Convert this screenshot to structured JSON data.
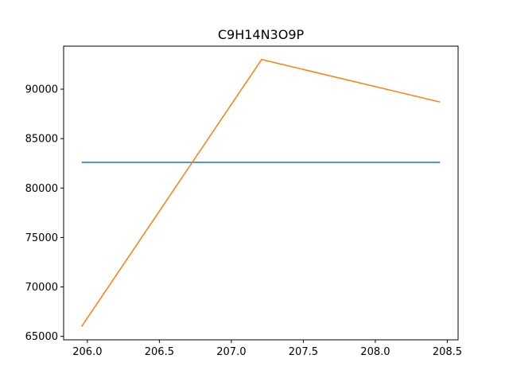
{
  "chart_data": {
    "type": "line",
    "title": "C9H14N3O9P",
    "xlabel": "",
    "ylabel": "",
    "xlim": [
      205.835,
      208.575
    ],
    "ylim": [
      64650,
      94350
    ],
    "x_ticks": [
      206.0,
      206.5,
      207.0,
      207.5,
      208.0,
      208.5
    ],
    "x_tick_labels": [
      "206.0",
      "206.5",
      "207.0",
      "207.5",
      "208.0",
      "208.5"
    ],
    "y_ticks": [
      65000,
      70000,
      75000,
      80000,
      85000,
      90000
    ],
    "y_tick_labels": [
      "65000",
      "70000",
      "75000",
      "80000",
      "85000",
      "90000"
    ],
    "grid": false,
    "series": [
      {
        "color": "#1f77b4",
        "x": [
          205.96,
          208.45
        ],
        "y": [
          82600,
          82600
        ]
      },
      {
        "color": "#ff7f0e",
        "x": [
          205.96,
          207.21,
          208.45
        ],
        "y": [
          66000,
          93000,
          88700
        ]
      }
    ]
  }
}
